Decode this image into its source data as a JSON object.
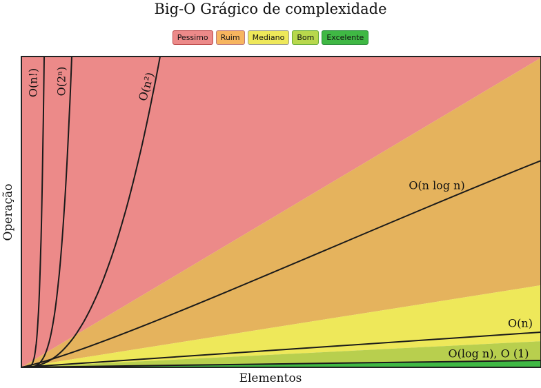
{
  "chart_data": {
    "type": "area",
    "title": "Big-O Grágico de complexidade",
    "xlabel": "Elementos",
    "ylabel": "Operação",
    "grid": false,
    "legend_position": "top-center",
    "legend": [
      {
        "name": "Pessimo",
        "color": "#ec8a89"
      },
      {
        "name": "Ruim",
        "color": "#f7b55f"
      },
      {
        "name": "Mediano",
        "color": "#eee85a"
      },
      {
        "name": "Bom",
        "color": "#b8d84c"
      },
      {
        "name": "Excelente",
        "color": "#3fb844"
      }
    ],
    "regions": [
      {
        "name": "Pessimo",
        "color": "#ec8a89",
        "upper_fraction_at_right": 1.0
      },
      {
        "name": "Ruim",
        "color": "#e5b35d",
        "upper_fraction_at_right": 0.996
      },
      {
        "name": "Mediano",
        "color": "#eee85a",
        "upper_fraction_at_right": 0.264
      },
      {
        "name": "Bom",
        "color": "#b8cf4e",
        "upper_fraction_at_right": 0.084
      },
      {
        "name": "Excelente",
        "color": "#3fb844",
        "upper_fraction_at_right": 0.022
      }
    ],
    "curves": [
      {
        "label": "O(n!)",
        "kind": "factorial"
      },
      {
        "label": "O(2ⁿ)",
        "kind": "exponential"
      },
      {
        "label": "O(n²)",
        "kind": "quadratic"
      },
      {
        "label": "O(n log n)",
        "kind": "nlogn"
      },
      {
        "label": "O(n)",
        "kind": "linear"
      },
      {
        "label": "O(log n), O (1)",
        "kind": "constant"
      }
    ]
  }
}
